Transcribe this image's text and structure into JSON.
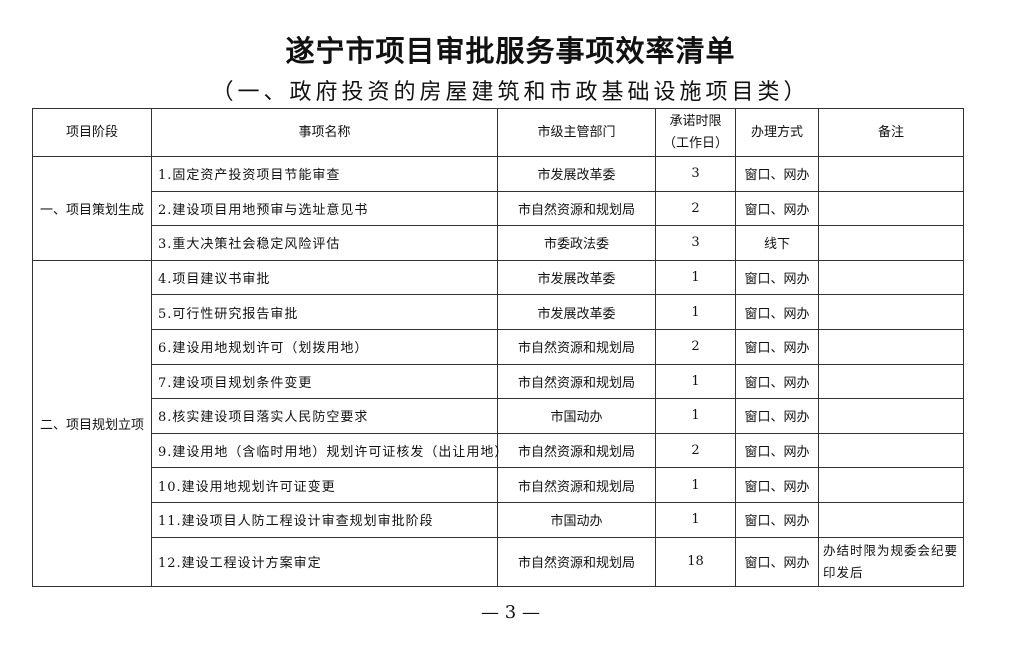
{
  "title": "遂宁市项目审批服务事项效率清单",
  "subtitle": "（一、政府投资的房屋建筑和市政基础设施项目类）",
  "table": {
    "headers": [
      "项目阶段",
      "事项名称",
      "市级主管部门",
      "承诺时限（工作日）",
      "办理方式",
      "备注"
    ],
    "header_time_line1": "承诺时限",
    "header_time_line2": "（工作日）",
    "groups": [
      {
        "stage": "一、项目策划生成",
        "rows": [
          {
            "name": "1.固定资产投资项目节能审查",
            "dept": "市发展改革委",
            "days": "3",
            "method": "窗口、网办",
            "note": ""
          },
          {
            "name": "2.建设项目用地预审与选址意见书",
            "dept": "市自然资源和规划局",
            "days": "2",
            "method": "窗口、网办",
            "note": ""
          },
          {
            "name": "3.重大决策社会稳定风险评估",
            "dept": "市委政法委",
            "days": "3",
            "method": "线下",
            "note": ""
          }
        ]
      },
      {
        "stage": "二、项目规划立项",
        "rows": [
          {
            "name": "4.项目建议书审批",
            "dept": "市发展改革委",
            "days": "1",
            "method": "窗口、网办",
            "note": ""
          },
          {
            "name": "5.可行性研究报告审批",
            "dept": "市发展改革委",
            "days": "1",
            "method": "窗口、网办",
            "note": ""
          },
          {
            "name": "6.建设用地规划许可（划拨用地）",
            "dept": "市自然资源和规划局",
            "days": "2",
            "method": "窗口、网办",
            "note": ""
          },
          {
            "name": "7.建设项目规划条件变更",
            "dept": "市自然资源和规划局",
            "days": "1",
            "method": "窗口、网办",
            "note": ""
          },
          {
            "name": "8.核实建设项目落实人民防空要求",
            "dept": "市国动办",
            "days": "1",
            "method": "窗口、网办",
            "note": ""
          },
          {
            "name": "9.建设用地（含临时用地）规划许可证核发（出让用地）",
            "dept": "市自然资源和规划局",
            "days": "2",
            "method": "窗口、网办",
            "note": ""
          },
          {
            "name": "10.建设用地规划许可证变更",
            "dept": "市自然资源和规划局",
            "days": "1",
            "method": "窗口、网办",
            "note": ""
          },
          {
            "name": "11.建设项目人防工程设计审查规划审批阶段",
            "dept": "市国动办",
            "days": "1",
            "method": "窗口、网办",
            "note": ""
          },
          {
            "name": "12.建设工程设计方案审定",
            "dept": "市自然资源和规划局",
            "days": "18",
            "method": "窗口、网办",
            "note": "办结时限为规委会纪要印发后"
          }
        ]
      }
    ]
  },
  "page_number": "— 3 —"
}
